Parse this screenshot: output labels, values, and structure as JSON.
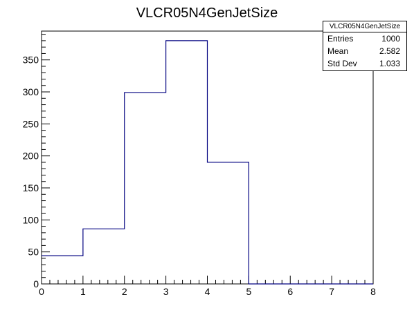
{
  "chart_data": {
    "type": "bar",
    "title": "VLCR05N4GenJetSize",
    "xlabel": "",
    "ylabel": "",
    "bin_edges": [
      0,
      1,
      2,
      3,
      4,
      5,
      6,
      7,
      8
    ],
    "values": [
      44,
      86,
      299,
      380,
      190,
      0,
      0,
      0
    ],
    "xlim": [
      0,
      8
    ],
    "ylim": [
      0,
      395
    ],
    "xticks": [
      0,
      1,
      2,
      3,
      4,
      5,
      6,
      7,
      8
    ],
    "yticks": [
      0,
      50,
      100,
      150,
      200,
      250,
      300,
      350
    ],
    "line_color": "#000080",
    "grid": false,
    "stats": {
      "title": "VLCR05N4GenJetSize",
      "rows": [
        {
          "label": "Entries",
          "value": "1000"
        },
        {
          "label": "Mean",
          "value": "2.582"
        },
        {
          "label": "Std Dev",
          "value": "1.033"
        }
      ]
    }
  }
}
